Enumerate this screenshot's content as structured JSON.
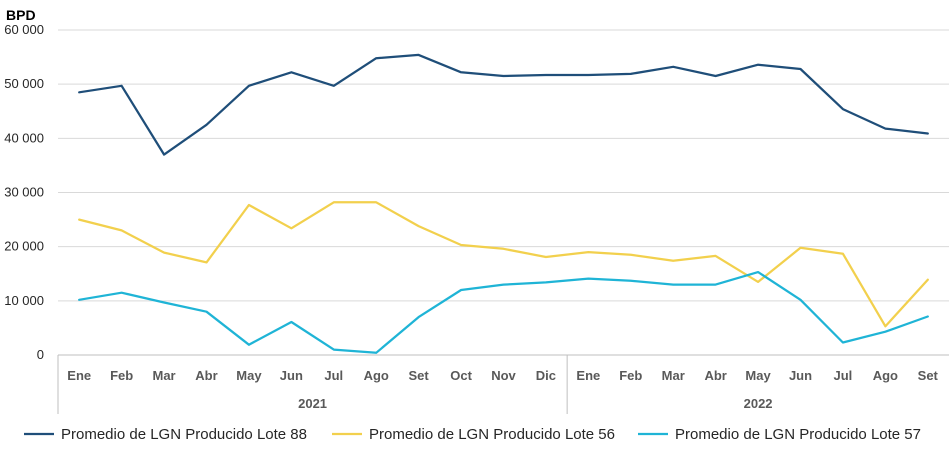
{
  "chart_data": {
    "type": "line",
    "unit_label": "BPD",
    "ylim": [
      0,
      60000
    ],
    "yticks": [
      0,
      10000,
      20000,
      30000,
      40000,
      50000,
      60000
    ],
    "ytick_labels": [
      "0",
      "10 000",
      "20 000",
      "30 000",
      "40 000",
      "50 000",
      "60 000"
    ],
    "grid": true,
    "legend_position": "bottom",
    "categories": [
      "Ene",
      "Feb",
      "Mar",
      "Abr",
      "May",
      "Jun",
      "Jul",
      "Ago",
      "Set",
      "Oct",
      "Nov",
      "Dic",
      "Ene",
      "Feb",
      "Mar",
      "Abr",
      "May",
      "Jun",
      "Jul",
      "Ago",
      "Set"
    ],
    "groups": [
      {
        "label": "2021",
        "count": 12
      },
      {
        "label": "2022",
        "count": 9
      }
    ],
    "series": [
      {
        "name": "Promedio de LGN Producido Lote 88",
        "color": "#1f4e79",
        "values": [
          48500,
          49700,
          37000,
          42500,
          49700,
          52200,
          49700,
          54800,
          55400,
          52200,
          51500,
          51700,
          51700,
          51900,
          53200,
          51500,
          53600,
          52800,
          45400,
          41800,
          40900
        ]
      },
      {
        "name": "Promedio de LGN Producido Lote 56",
        "color": "#f2d04d",
        "values": [
          25000,
          23000,
          18900,
          17100,
          27700,
          23400,
          28200,
          28200,
          23800,
          20300,
          19600,
          18100,
          19000,
          18500,
          17400,
          18300,
          13500,
          19800,
          18700,
          5300,
          13900
        ]
      },
      {
        "name": "Promedio de LGN Producido Lote 57",
        "color": "#1fb4d6",
        "values": [
          10200,
          11500,
          9700,
          8000,
          1900,
          6100,
          1000,
          400,
          7000,
          12000,
          13000,
          13400,
          14100,
          13700,
          13000,
          13000,
          15300,
          10200,
          2300,
          4300,
          7100
        ]
      }
    ]
  }
}
